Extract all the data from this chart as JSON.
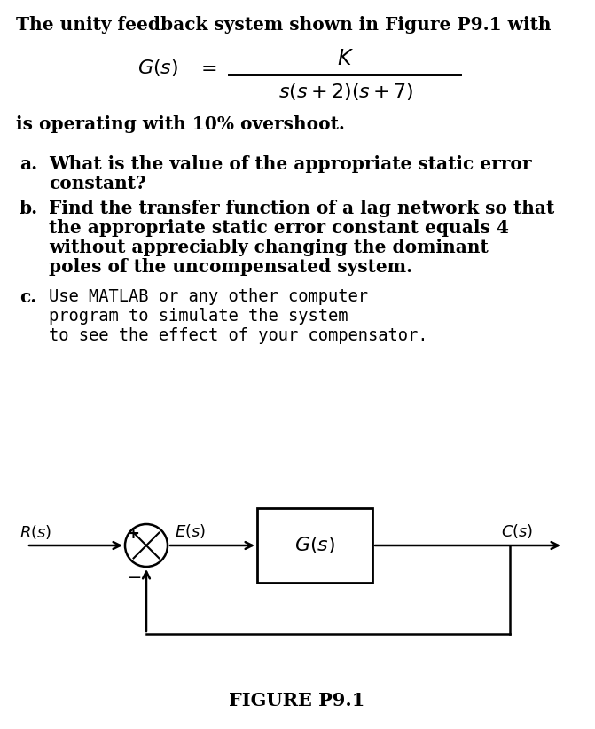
{
  "title_text": "The unity feedback system shown in Figure P9.1 with",
  "operating_text": "is operating with 10% overshoot.",
  "part_a_label": "a.",
  "part_a_line1": "What is the value of the appropriate static error",
  "part_a_line2": "constant?",
  "part_b_label": "b.",
  "part_b_line1": "Find the transfer function of a lag network so that",
  "part_b_line2": "the appropriate static error constant equals 4",
  "part_b_line3": "without appreciably changing the dominant",
  "part_b_line4": "poles of the uncompensated system.",
  "part_c_label": "c.",
  "part_c_line1": "Use MATLAB or any other computer",
  "part_c_line2": "program to simulate the system",
  "part_c_line3": "to see the effect of your compensator.",
  "figure_label": "FIGURE P9.1",
  "bg_color": "#ffffff",
  "text_color": "#000000",
  "fs_main": 14.5,
  "fs_mono": 13.5,
  "fs_math": 16,
  "fs_fig_label": 15
}
